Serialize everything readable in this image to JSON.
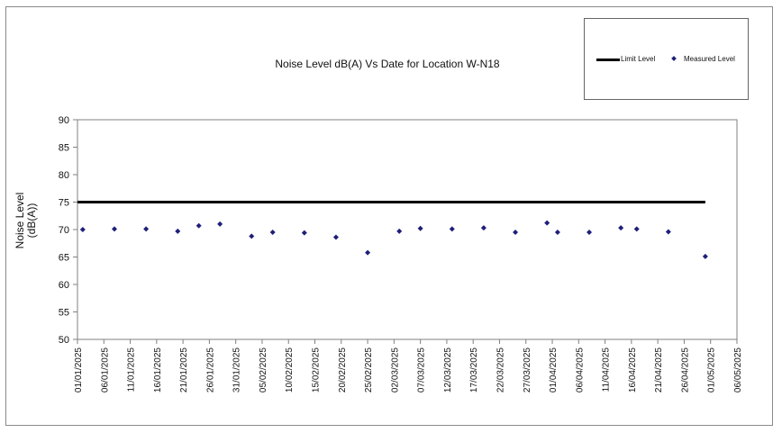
{
  "chart_data": {
    "type": "scatter",
    "title": "Noise Level dB(A) Vs Date for Location W-N18",
    "xlabel": "",
    "ylabel_lines": [
      "Noise Level",
      "(dB(A))"
    ],
    "ylim": [
      50,
      90
    ],
    "y_ticks": [
      50,
      55,
      60,
      65,
      70,
      75,
      80,
      85,
      90
    ],
    "x_ticks": [
      "01/01/2025",
      "06/01/2025",
      "11/01/2025",
      "16/01/2025",
      "21/01/2025",
      "26/01/2025",
      "31/01/2025",
      "05/02/2025",
      "10/02/2025",
      "15/02/2025",
      "20/02/2025",
      "25/02/2025",
      "02/03/2025",
      "07/03/2025",
      "12/03/2025",
      "17/03/2025",
      "22/03/2025",
      "27/03/2025",
      "01/04/2025",
      "06/04/2025",
      "11/04/2025",
      "16/04/2025",
      "21/04/2025",
      "26/04/2025",
      "01/05/2025",
      "06/05/2025"
    ],
    "xlim": [
      "01/01/2025",
      "06/05/2025"
    ],
    "grid": false,
    "legend_position": "top-right",
    "series": [
      {
        "name": "Limit Level",
        "kind": "line",
        "color": "#000000",
        "points": [
          {
            "x": "01/01/2025",
            "y": 75
          },
          {
            "x": "30/04/2025",
            "y": 75
          }
        ]
      },
      {
        "name": "Measured Level",
        "kind": "scatter",
        "color": "#1f1f7a",
        "marker": "diamond",
        "points": [
          {
            "x": "02/01/2025",
            "y": 70.0
          },
          {
            "x": "08/01/2025",
            "y": 70.1
          },
          {
            "x": "14/01/2025",
            "y": 70.1
          },
          {
            "x": "20/01/2025",
            "y": 69.7
          },
          {
            "x": "24/01/2025",
            "y": 70.7
          },
          {
            "x": "28/01/2025",
            "y": 71.0
          },
          {
            "x": "03/02/2025",
            "y": 68.8
          },
          {
            "x": "07/02/2025",
            "y": 69.5
          },
          {
            "x": "13/02/2025",
            "y": 69.4
          },
          {
            "x": "19/02/2025",
            "y": 68.6
          },
          {
            "x": "25/02/2025",
            "y": 65.8
          },
          {
            "x": "03/03/2025",
            "y": 69.7
          },
          {
            "x": "07/03/2025",
            "y": 70.2
          },
          {
            "x": "13/03/2025",
            "y": 70.1
          },
          {
            "x": "19/03/2025",
            "y": 70.3
          },
          {
            "x": "25/03/2025",
            "y": 69.5
          },
          {
            "x": "31/03/2025",
            "y": 71.2
          },
          {
            "x": "02/04/2025",
            "y": 69.5
          },
          {
            "x": "08/04/2025",
            "y": 69.5
          },
          {
            "x": "14/04/2025",
            "y": 70.3
          },
          {
            "x": "17/04/2025",
            "y": 70.1
          },
          {
            "x": "23/04/2025",
            "y": 69.6
          },
          {
            "x": "30/04/2025",
            "y": 65.1
          }
        ]
      }
    ]
  }
}
